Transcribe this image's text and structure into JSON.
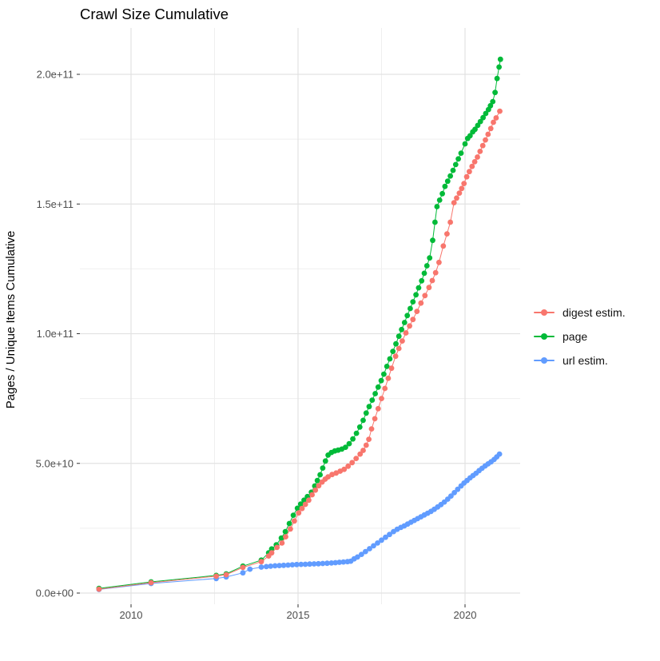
{
  "title": "Crawl Size Cumulative",
  "y_axis_title": "Pages / Unique Items Cumulative",
  "colors": {
    "digest": "#F8766D",
    "page": "#00BA38",
    "url": "#619CFF",
    "grid_major": "#E2E2E2",
    "grid_minor": "#EFEFEF",
    "axis_text": "#4D4D4D",
    "tick_mark": "#333333",
    "title_text": "#000000",
    "background": "#FFFFFF"
  },
  "legend": {
    "items": [
      {
        "label": "digest estim.",
        "color": "#F8766D"
      },
      {
        "label": "page",
        "color": "#00BA38"
      },
      {
        "label": "url estim.",
        "color": "#619CFF"
      }
    ]
  },
  "chart_data": {
    "type": "line",
    "title": "Crawl Size Cumulative",
    "xlabel": "",
    "ylabel": "Pages / Unique Items Cumulative",
    "grid": "major+minor",
    "legend_position": "right-center",
    "units": "values stored in billions (1e9) of pages / unique items",
    "xlim": [
      2008.47,
      2021.65
    ],
    "ylim_billions": [
      -4.3,
      217.9
    ],
    "x_ticks": [
      {
        "value": 2010,
        "label": "2010"
      },
      {
        "value": 2015,
        "label": "2015"
      },
      {
        "value": 2020,
        "label": "2020"
      }
    ],
    "x_minor_ticks": [
      2012.5,
      2017.5
    ],
    "y_ticks": [
      {
        "value_billions": 0,
        "label": "0.0e+00"
      },
      {
        "value_billions": 50,
        "label": "5.0e+10"
      },
      {
        "value_billions": 100,
        "label": "1.0e+11"
      },
      {
        "value_billions": 150,
        "label": "1.5e+11"
      },
      {
        "value_billions": 200,
        "label": "2.0e+11"
      }
    ],
    "y_minor_ticks_billions": [
      25,
      75,
      125,
      175
    ],
    "draw_order": [
      "page",
      "url estim.",
      "digest estim."
    ],
    "series": [
      {
        "name": "digest estim.",
        "color": "#F8766D",
        "points": [
          [
            2009.04,
            1.5
          ],
          [
            2010.6,
            4.0
          ],
          [
            2012.55,
            6.5
          ],
          [
            2012.85,
            7.1
          ],
          [
            2013.35,
            9.9
          ],
          [
            2013.9,
            12.1
          ],
          [
            2014.12,
            14.3
          ],
          [
            2014.21,
            15.5
          ],
          [
            2014.37,
            17.6
          ],
          [
            2014.52,
            19.3
          ],
          [
            2014.63,
            21.7
          ],
          [
            2014.77,
            24.7
          ],
          [
            2014.89,
            27.8
          ],
          [
            2015.02,
            30.9
          ],
          [
            2015.12,
            32.6
          ],
          [
            2015.22,
            34.2
          ],
          [
            2015.32,
            35.8
          ],
          [
            2015.42,
            37.9
          ],
          [
            2015.52,
            39.7
          ],
          [
            2015.62,
            41.4
          ],
          [
            2015.72,
            42.8
          ],
          [
            2015.81,
            43.9
          ],
          [
            2015.9,
            44.8
          ],
          [
            2016.02,
            45.7
          ],
          [
            2016.14,
            46.3
          ],
          [
            2016.26,
            47.0
          ],
          [
            2016.38,
            47.7
          ],
          [
            2016.5,
            48.9
          ],
          [
            2016.62,
            50.3
          ],
          [
            2016.74,
            51.9
          ],
          [
            2016.86,
            53.6
          ],
          [
            2016.95,
            55.0
          ],
          [
            2017.04,
            57.0
          ],
          [
            2017.12,
            59.3
          ],
          [
            2017.2,
            63.3
          ],
          [
            2017.3,
            67.2
          ],
          [
            2017.4,
            71.1
          ],
          [
            2017.5,
            75.0
          ],
          [
            2017.6,
            78.9
          ],
          [
            2017.7,
            82.8
          ],
          [
            2017.8,
            86.7
          ],
          [
            2017.92,
            91.3
          ],
          [
            2018.02,
            94.3
          ],
          [
            2018.12,
            97.2
          ],
          [
            2018.23,
            100.3
          ],
          [
            2018.34,
            103.0
          ],
          [
            2018.44,
            105.5
          ],
          [
            2018.56,
            108.6
          ],
          [
            2018.68,
            111.8
          ],
          [
            2018.8,
            114.7
          ],
          [
            2018.92,
            117.8
          ],
          [
            2019.02,
            120.5
          ],
          [
            2019.12,
            123.5
          ],
          [
            2019.22,
            127.5
          ],
          [
            2019.35,
            133.8
          ],
          [
            2019.46,
            138.5
          ],
          [
            2019.56,
            143.0
          ],
          [
            2019.67,
            150.5
          ],
          [
            2019.75,
            152.3
          ],
          [
            2019.83,
            154.2
          ],
          [
            2019.9,
            156.0
          ],
          [
            2019.97,
            157.9
          ],
          [
            2020.05,
            160.5
          ],
          [
            2020.13,
            162.5
          ],
          [
            2020.21,
            164.5
          ],
          [
            2020.29,
            166.3
          ],
          [
            2020.37,
            168.1
          ],
          [
            2020.45,
            170.3
          ],
          [
            2020.53,
            172.5
          ],
          [
            2020.61,
            174.7
          ],
          [
            2020.69,
            176.9
          ],
          [
            2020.77,
            179.1
          ],
          [
            2020.85,
            181.5
          ],
          [
            2020.93,
            183.2
          ],
          [
            2021.04,
            185.8
          ]
        ]
      },
      {
        "name": "page",
        "color": "#00BA38",
        "points": [
          [
            2009.04,
            1.8
          ],
          [
            2010.6,
            4.3
          ],
          [
            2012.55,
            6.8
          ],
          [
            2012.85,
            7.4
          ],
          [
            2013.35,
            10.4
          ],
          [
            2013.9,
            12.7
          ],
          [
            2014.12,
            15.5
          ],
          [
            2014.21,
            17.0
          ],
          [
            2014.35,
            18.6
          ],
          [
            2014.5,
            21.2
          ],
          [
            2014.62,
            23.7
          ],
          [
            2014.74,
            26.8
          ],
          [
            2014.86,
            30.0
          ],
          [
            2014.98,
            32.7
          ],
          [
            2015.08,
            34.3
          ],
          [
            2015.18,
            35.8
          ],
          [
            2015.28,
            37.2
          ],
          [
            2015.4,
            38.9
          ],
          [
            2015.5,
            41.3
          ],
          [
            2015.58,
            43.4
          ],
          [
            2015.66,
            45.6
          ],
          [
            2015.74,
            48.2
          ],
          [
            2015.82,
            50.9
          ],
          [
            2015.9,
            53.2
          ],
          [
            2016.0,
            54.2
          ],
          [
            2016.1,
            54.8
          ],
          [
            2016.2,
            55.1
          ],
          [
            2016.31,
            55.5
          ],
          [
            2016.42,
            56.2
          ],
          [
            2016.53,
            57.6
          ],
          [
            2016.64,
            59.4
          ],
          [
            2016.75,
            61.6
          ],
          [
            2016.85,
            64.0
          ],
          [
            2016.95,
            66.6
          ],
          [
            2017.04,
            69.4
          ],
          [
            2017.13,
            71.9
          ],
          [
            2017.22,
            74.4
          ],
          [
            2017.31,
            76.9
          ],
          [
            2017.4,
            79.4
          ],
          [
            2017.49,
            81.9
          ],
          [
            2017.57,
            84.4
          ],
          [
            2017.66,
            87.4
          ],
          [
            2017.75,
            90.3
          ],
          [
            2017.84,
            93.2
          ],
          [
            2017.93,
            96.1
          ],
          [
            2018.02,
            99.0
          ],
          [
            2018.1,
            101.6
          ],
          [
            2018.19,
            104.3
          ],
          [
            2018.27,
            107.0
          ],
          [
            2018.36,
            109.7
          ],
          [
            2018.44,
            112.3
          ],
          [
            2018.53,
            115.0
          ],
          [
            2018.61,
            117.7
          ],
          [
            2018.7,
            120.4
          ],
          [
            2018.78,
            123.3
          ],
          [
            2018.86,
            126.2
          ],
          [
            2018.94,
            129.2
          ],
          [
            2019.03,
            136.0
          ],
          [
            2019.1,
            143.0
          ],
          [
            2019.16,
            149.0
          ],
          [
            2019.24,
            151.5
          ],
          [
            2019.32,
            154.0
          ],
          [
            2019.4,
            156.8
          ],
          [
            2019.48,
            158.8
          ],
          [
            2019.56,
            160.8
          ],
          [
            2019.64,
            163.0
          ],
          [
            2019.72,
            165.2
          ],
          [
            2019.8,
            167.4
          ],
          [
            2019.88,
            169.6
          ],
          [
            2020.0,
            173.2
          ],
          [
            2020.08,
            175.3
          ],
          [
            2020.15,
            176.3
          ],
          [
            2020.23,
            177.8
          ],
          [
            2020.3,
            178.8
          ],
          [
            2020.38,
            180.3
          ],
          [
            2020.46,
            181.8
          ],
          [
            2020.54,
            183.3
          ],
          [
            2020.62,
            184.9
          ],
          [
            2020.7,
            186.4
          ],
          [
            2020.76,
            187.9
          ],
          [
            2020.83,
            189.5
          ],
          [
            2020.9,
            193.0
          ],
          [
            2020.96,
            198.4
          ],
          [
            2021.02,
            202.8
          ],
          [
            2021.06,
            205.8
          ]
        ]
      },
      {
        "name": "url estim.",
        "color": "#619CFF",
        "points": [
          [
            2009.04,
            1.4
          ],
          [
            2010.6,
            3.7
          ],
          [
            2012.55,
            5.6
          ],
          [
            2012.85,
            6.2
          ],
          [
            2013.35,
            7.8
          ],
          [
            2013.56,
            9.2
          ],
          [
            2013.9,
            10.0
          ],
          [
            2014.05,
            10.2
          ],
          [
            2014.18,
            10.35
          ],
          [
            2014.31,
            10.5
          ],
          [
            2014.44,
            10.6
          ],
          [
            2014.57,
            10.7
          ],
          [
            2014.7,
            10.8
          ],
          [
            2014.83,
            10.9
          ],
          [
            2014.96,
            11.0
          ],
          [
            2015.09,
            11.05
          ],
          [
            2015.22,
            11.1
          ],
          [
            2015.35,
            11.2
          ],
          [
            2015.48,
            11.25
          ],
          [
            2015.61,
            11.3
          ],
          [
            2015.74,
            11.4
          ],
          [
            2015.87,
            11.5
          ],
          [
            2016.0,
            11.6
          ],
          [
            2016.12,
            11.7
          ],
          [
            2016.24,
            11.85
          ],
          [
            2016.36,
            12.0
          ],
          [
            2016.48,
            12.1
          ],
          [
            2016.58,
            12.3
          ],
          [
            2016.68,
            13.2
          ],
          [
            2016.78,
            13.9
          ],
          [
            2016.9,
            14.9
          ],
          [
            2017.02,
            16.0
          ],
          [
            2017.14,
            17.1
          ],
          [
            2017.26,
            18.2
          ],
          [
            2017.38,
            19.3
          ],
          [
            2017.5,
            20.4
          ],
          [
            2017.62,
            21.5
          ],
          [
            2017.74,
            22.6
          ],
          [
            2017.86,
            23.7
          ],
          [
            2017.97,
            24.6
          ],
          [
            2018.08,
            25.3
          ],
          [
            2018.18,
            25.9
          ],
          [
            2018.28,
            26.6
          ],
          [
            2018.38,
            27.3
          ],
          [
            2018.48,
            28.0
          ],
          [
            2018.58,
            28.7
          ],
          [
            2018.68,
            29.4
          ],
          [
            2018.78,
            30.1
          ],
          [
            2018.88,
            30.8
          ],
          [
            2018.98,
            31.5
          ],
          [
            2019.08,
            32.3
          ],
          [
            2019.18,
            33.2
          ],
          [
            2019.28,
            34.1
          ],
          [
            2019.38,
            35.1
          ],
          [
            2019.48,
            36.2
          ],
          [
            2019.58,
            37.4
          ],
          [
            2019.68,
            38.7
          ],
          [
            2019.78,
            40.0
          ],
          [
            2019.88,
            41.3
          ],
          [
            2019.97,
            42.4
          ],
          [
            2020.06,
            43.4
          ],
          [
            2020.15,
            44.4
          ],
          [
            2020.24,
            45.3
          ],
          [
            2020.33,
            46.2
          ],
          [
            2020.42,
            47.2
          ],
          [
            2020.51,
            48.1
          ],
          [
            2020.6,
            49.0
          ],
          [
            2020.69,
            49.8
          ],
          [
            2020.78,
            50.6
          ],
          [
            2020.87,
            51.5
          ],
          [
            2020.95,
            52.5
          ],
          [
            2021.03,
            53.6
          ]
        ]
      }
    ]
  }
}
